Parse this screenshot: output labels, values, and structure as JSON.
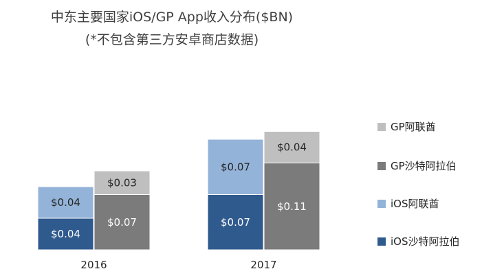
{
  "chart_data": {
    "type": "bar",
    "stacked": true,
    "title": "中东主要国家iOS/GP App收入分布($BN)",
    "subtitle": "(*不包含第三方安卓商店数据)",
    "categories": [
      "2016",
      "2017"
    ],
    "series": [
      {
        "name": "iOS沙特阿拉伯",
        "stack": "iOS",
        "values": [
          0.04,
          0.07
        ],
        "labels": [
          "$0.04",
          "$0.07"
        ],
        "color": "#2f5a8e"
      },
      {
        "name": "iOS阿联酋",
        "stack": "iOS",
        "values": [
          0.04,
          0.07
        ],
        "labels": [
          "$0.04",
          "$0.07"
        ],
        "color": "#94b3d8"
      },
      {
        "name": "GP沙特阿拉伯",
        "stack": "GP",
        "values": [
          0.07,
          0.11
        ],
        "labels": [
          "$0.07",
          "$0.11"
        ],
        "color": "#7b7b7b"
      },
      {
        "name": "GP阿联酋",
        "stack": "GP",
        "values": [
          0.03,
          0.04
        ],
        "labels": [
          "$0.03",
          "$0.04"
        ],
        "color": "#bfbfbf"
      }
    ],
    "legend": [
      "GP阿联酋",
      "GP沙特阿拉伯",
      "iOS阿联酋",
      "iOS沙特阿拉伯"
    ],
    "legend_position": "right",
    "grid": false
  }
}
